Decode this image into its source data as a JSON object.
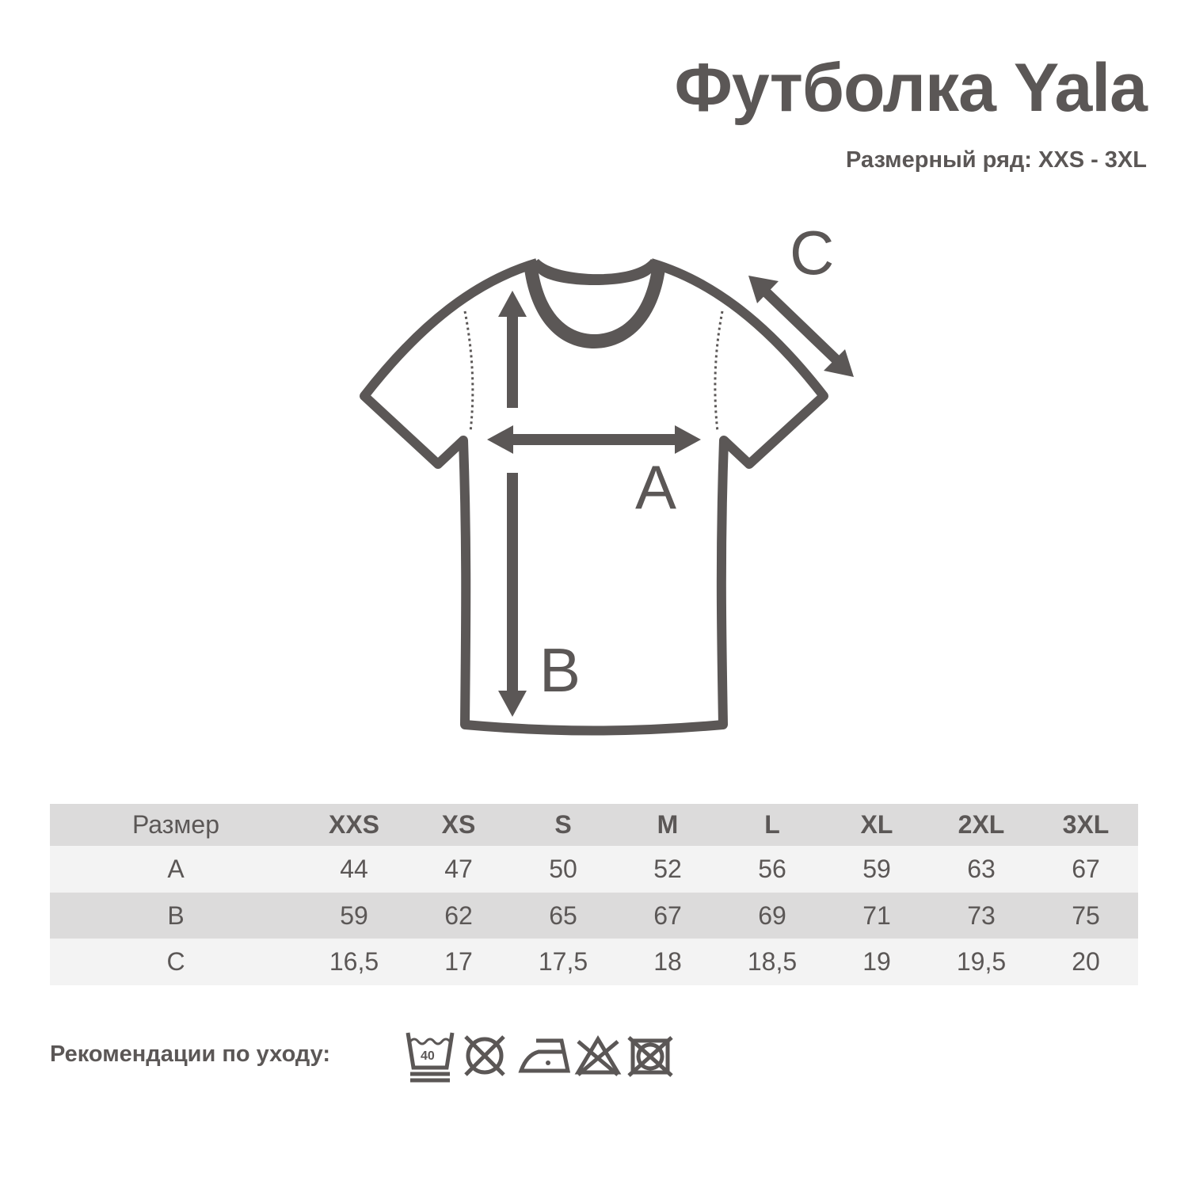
{
  "title": "Футболка Yala",
  "subtitle": "Размерный ряд: XXS - 3XL",
  "diagram": {
    "labels": {
      "a": "A",
      "b": "B",
      "c": "C"
    },
    "color": "#5b5756"
  },
  "table": {
    "headers": [
      "Размер",
      "XXS",
      "XS",
      "S",
      "M",
      "L",
      "XL",
      "2XL",
      "3XL"
    ],
    "rows": [
      [
        "A",
        "44",
        "47",
        "50",
        "52",
        "56",
        "59",
        "63",
        "67"
      ],
      [
        "B",
        "59",
        "62",
        "65",
        "67",
        "69",
        "71",
        "73",
        "75"
      ],
      [
        "C",
        "16,5",
        "17",
        "17,5",
        "18",
        "18,5",
        "19",
        "19,5",
        "20"
      ]
    ]
  },
  "care": {
    "label": "Рекомендации по уходу:",
    "icons": [
      "wash-40-gentle-icon",
      "no-tumble-dry-icon",
      "iron-low-icon",
      "no-bleach-icon",
      "no-dry-clean-square-icon"
    ],
    "wash_temp": "40"
  }
}
